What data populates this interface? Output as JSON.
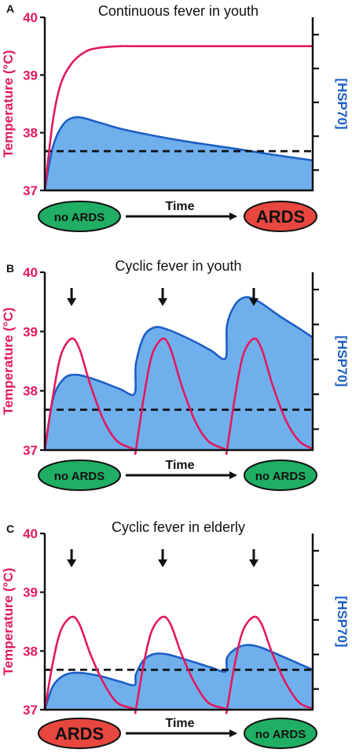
{
  "colors": {
    "temperature": "#e3185f",
    "hsp70_line": "#1d5fc4",
    "hsp70_fill": "#6fb0ec",
    "no_ards": "#1fae63",
    "ards": "#e8473f"
  },
  "chart_data": [
    {
      "type": "area",
      "panel": "A",
      "title": "Continuous fever in youth",
      "ylabel": "Temperature (°C)",
      "ylabel_right": "[HSP70]",
      "xlabel": "Time",
      "ylim": [
        37,
        40
      ],
      "yticks": [
        "37",
        "38",
        "39",
        "40"
      ],
      "threshold": 37.68,
      "start_state": "no ARDS",
      "end_state": "ARDS",
      "start_is_ards": false,
      "end_is_ards": true,
      "temperature": {
        "x": [
          0,
          0.03,
          0.06,
          0.1,
          0.15,
          0.2,
          0.28,
          0.35,
          1.0
        ],
        "y": [
          37.0,
          38.2,
          38.85,
          39.2,
          39.4,
          39.47,
          39.5,
          39.5,
          39.5
        ]
      },
      "hsp70": {
        "x": [
          0,
          0.03,
          0.07,
          0.12,
          0.2,
          0.3,
          0.5,
          0.7,
          0.85,
          1.0
        ],
        "y": [
          37.0,
          37.75,
          38.15,
          38.27,
          38.18,
          38.05,
          37.87,
          37.73,
          37.62,
          37.52
        ]
      }
    },
    {
      "type": "area",
      "panel": "B",
      "title": "Cyclic fever in youth",
      "ylabel": "Temperature (°C)",
      "ylabel_right": "[HSP70]",
      "xlabel": "Time",
      "ylim": [
        37,
        40
      ],
      "yticks": [
        "37",
        "38",
        "39",
        "40"
      ],
      "threshold": 37.68,
      "start_state": "no ARDS",
      "end_state": "no ARDS",
      "start_is_ards": false,
      "end_is_ards": false,
      "arrows_at_x": [
        0.1,
        0.44,
        0.78
      ],
      "temperature": {
        "x": [
          0,
          0.03,
          0.06,
          0.1,
          0.13,
          0.17,
          0.22,
          0.27,
          0.33,
          0.339,
          0.34,
          0.37,
          0.4,
          0.44,
          0.47,
          0.51,
          0.56,
          0.61,
          0.67,
          0.679,
          0.68,
          0.71,
          0.74,
          0.78,
          0.81,
          0.85,
          0.9,
          0.95,
          1.0
        ],
        "y": [
          37.0,
          37.9,
          38.6,
          38.88,
          38.7,
          38.1,
          37.5,
          37.15,
          37.02,
          37.0,
          37.0,
          37.9,
          38.6,
          38.88,
          38.7,
          38.1,
          37.5,
          37.15,
          37.02,
          37.0,
          37.0,
          37.9,
          38.6,
          38.88,
          38.7,
          38.1,
          37.5,
          37.15,
          37.02
        ]
      },
      "hsp70": {
        "x": [
          0,
          0.03,
          0.07,
          0.12,
          0.2,
          0.28,
          0.335,
          0.34,
          0.37,
          0.41,
          0.46,
          0.55,
          0.62,
          0.675,
          0.68,
          0.71,
          0.75,
          0.8,
          0.88,
          0.95,
          1.0
        ],
        "y": [
          37.0,
          37.85,
          38.2,
          38.27,
          38.17,
          38.03,
          37.95,
          38.45,
          38.92,
          39.07,
          39.03,
          38.85,
          38.68,
          38.55,
          39.1,
          39.45,
          39.58,
          39.5,
          39.25,
          39.05,
          38.9
        ]
      }
    },
    {
      "type": "area",
      "panel": "C",
      "title": "Cyclic fever in elderly",
      "ylabel": "Temperature (°C)",
      "ylabel_right": "[HSP70]",
      "xlabel": "Time",
      "ylim": [
        37,
        40
      ],
      "yticks": [
        "37",
        "38",
        "39",
        "40"
      ],
      "threshold": 37.68,
      "start_state": "ARDS",
      "end_state": "no ARDS",
      "start_is_ards": true,
      "end_is_ards": false,
      "arrows_at_x": [
        0.1,
        0.44,
        0.78
      ],
      "temperature": {
        "x": [
          0,
          0.03,
          0.06,
          0.1,
          0.13,
          0.17,
          0.22,
          0.27,
          0.33,
          0.339,
          0.34,
          0.37,
          0.4,
          0.44,
          0.47,
          0.51,
          0.56,
          0.61,
          0.67,
          0.679,
          0.68,
          0.71,
          0.74,
          0.78,
          0.81,
          0.85,
          0.9,
          0.95,
          1.0
        ],
        "y": [
          37.0,
          37.8,
          38.35,
          38.58,
          38.45,
          37.95,
          37.45,
          37.12,
          37.02,
          37.0,
          37.0,
          37.8,
          38.35,
          38.58,
          38.45,
          37.95,
          37.45,
          37.12,
          37.02,
          37.0,
          37.0,
          37.8,
          38.35,
          38.58,
          38.45,
          37.95,
          37.45,
          37.12,
          37.02
        ]
      },
      "hsp70": {
        "x": [
          0,
          0.03,
          0.07,
          0.12,
          0.2,
          0.28,
          0.335,
          0.34,
          0.37,
          0.41,
          0.46,
          0.55,
          0.62,
          0.675,
          0.68,
          0.71,
          0.75,
          0.8,
          0.88,
          0.95,
          1.0
        ],
        "y": [
          37.0,
          37.4,
          37.58,
          37.63,
          37.58,
          37.48,
          37.42,
          37.6,
          37.85,
          37.95,
          37.94,
          37.82,
          37.72,
          37.65,
          37.88,
          38.03,
          38.1,
          38.07,
          37.92,
          37.78,
          37.68
        ]
      }
    }
  ]
}
